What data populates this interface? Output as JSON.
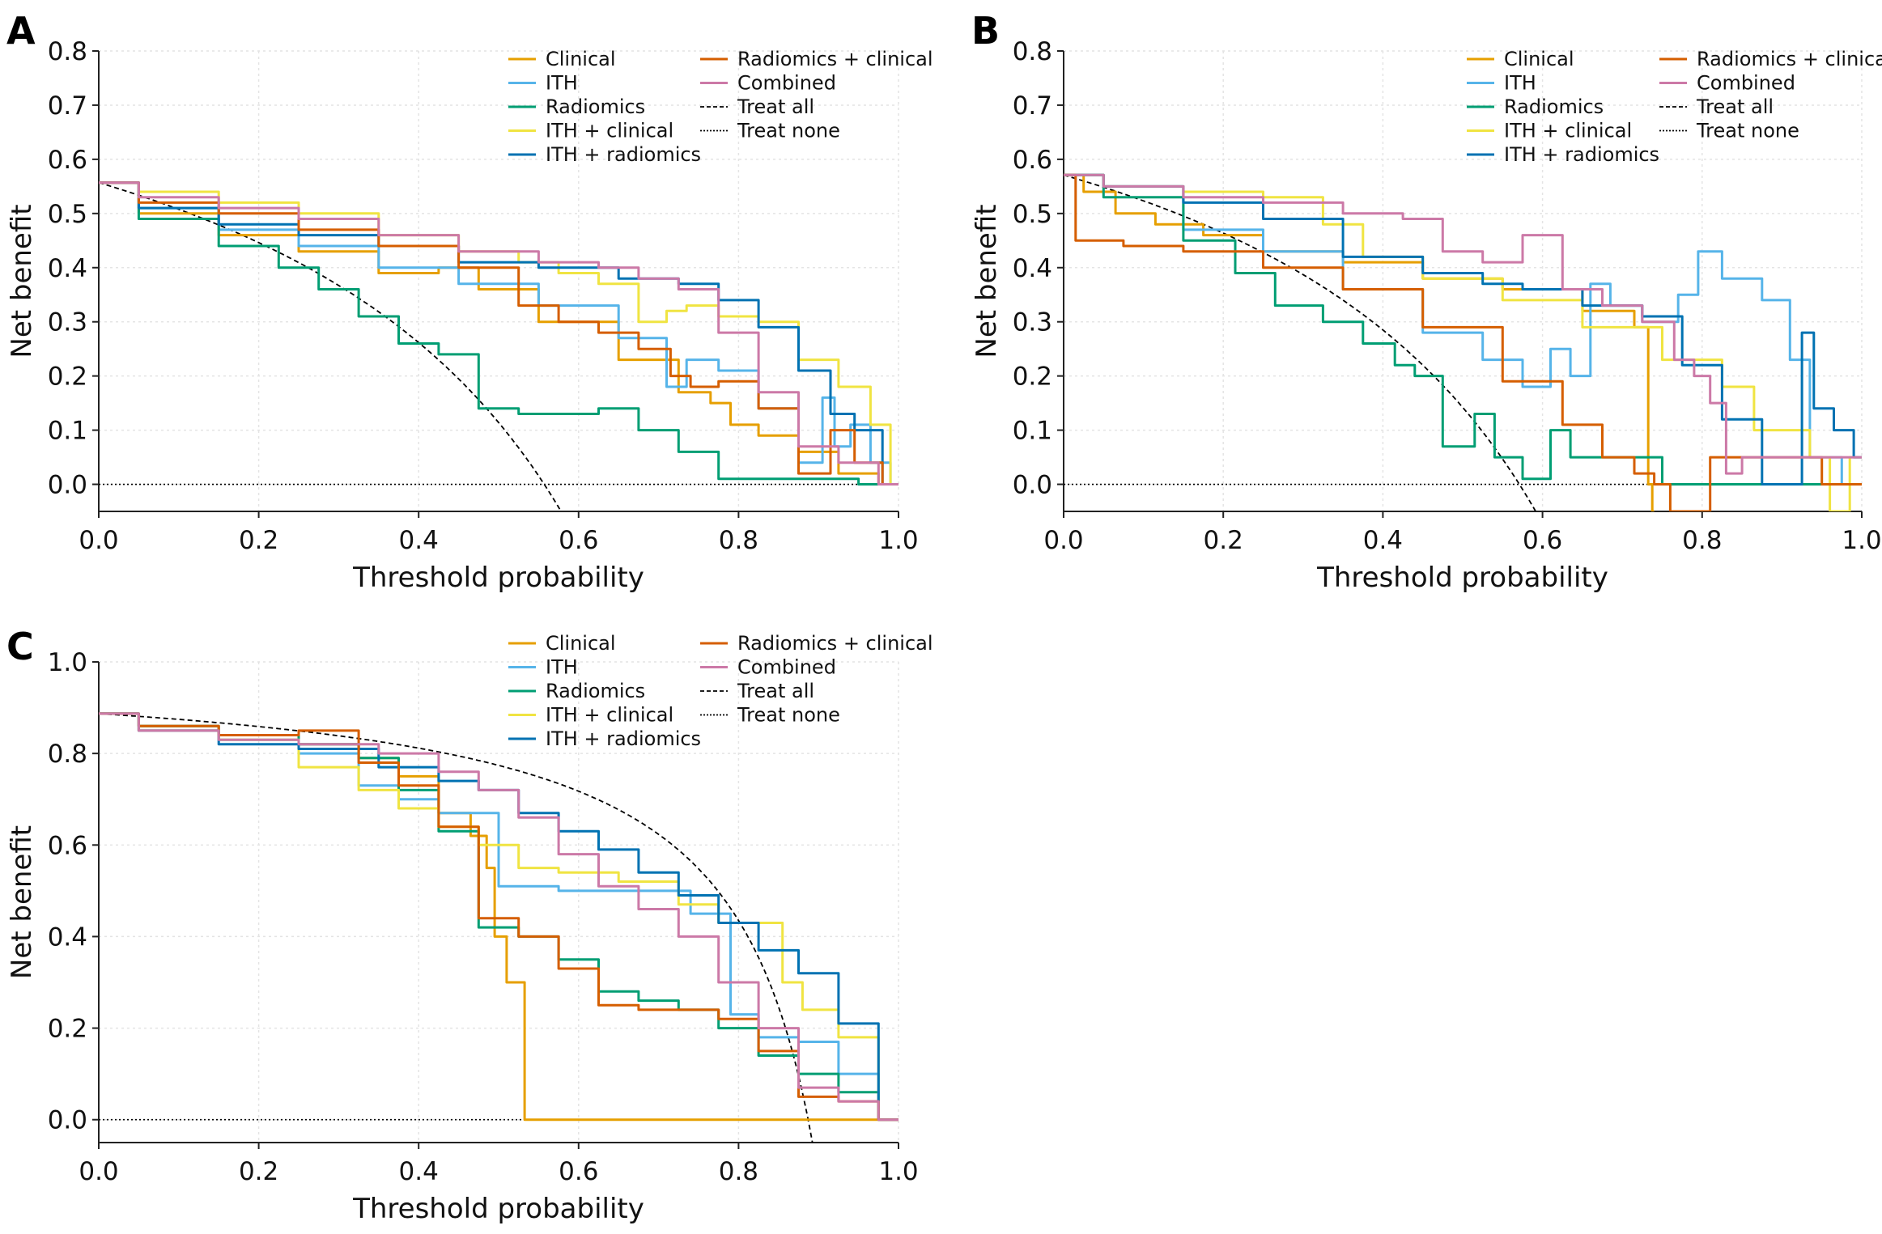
{
  "figure": {
    "colors": {
      "Clinical": "#E69F00",
      "ITH": "#56B4E9",
      "Radiomics": "#009E73",
      "ITH + clinical": "#F0E442",
      "ITH + radiomics": "#0072B2",
      "Radiomics + clinical": "#D55E00",
      "Combined": "#CC79A7",
      "Treat all": "#000000",
      "Treat none": "#000000"
    }
  },
  "chart_data": [
    {
      "panel": "A",
      "type": "line",
      "xlabel": "Threshold probability",
      "ylabel": "Net benefit",
      "xlim": [
        0,
        1
      ],
      "ylim": [
        -0.05,
        0.8
      ],
      "xticks": [
        "0.0",
        "0.2",
        "0.4",
        "0.6",
        "0.8",
        "1.0"
      ],
      "yticks": [
        "0.0",
        "0.1",
        "0.2",
        "0.3",
        "0.4",
        "0.5",
        "0.6",
        "0.7",
        "0.8"
      ],
      "ytick_values": [
        0,
        0.1,
        0.2,
        0.3,
        0.4,
        0.5,
        0.6,
        0.7,
        0.8
      ],
      "legend": [
        "Clinical",
        "ITH",
        "Radiomics",
        "ITH + clinical",
        "ITH + radiomics",
        "Radiomics + clinical",
        "Combined",
        "Treat all",
        "Treat none"
      ],
      "legend_position": "top-right",
      "prevalence": 0.557,
      "series": [
        {
          "name": "Clinical",
          "x": [
            0,
            0.1,
            0.2,
            0.3,
            0.4,
            0.45,
            0.5,
            0.6,
            0.7,
            0.75,
            0.78,
            0.8,
            0.85,
            0.9,
            0.95,
            1.0
          ],
          "y": [
            0.557,
            0.5,
            0.46,
            0.43,
            0.39,
            0.4,
            0.36,
            0.3,
            0.23,
            0.17,
            0.15,
            0.11,
            0.09,
            0.06,
            0.02,
            0.0
          ]
        },
        {
          "name": "ITH",
          "x": [
            0,
            0.1,
            0.2,
            0.3,
            0.4,
            0.5,
            0.6,
            0.7,
            0.72,
            0.75,
            0.8,
            0.85,
            0.9,
            0.91,
            0.93,
            0.95,
            0.98,
            1.0
          ],
          "y": [
            0.557,
            0.51,
            0.47,
            0.44,
            0.4,
            0.37,
            0.33,
            0.27,
            0.18,
            0.23,
            0.21,
            0.14,
            0.04,
            0.16,
            0.07,
            0.11,
            0.04,
            0.0
          ]
        },
        {
          "name": "Radiomics",
          "x": [
            0,
            0.1,
            0.2,
            0.25,
            0.3,
            0.35,
            0.4,
            0.45,
            0.5,
            0.55,
            0.6,
            0.65,
            0.7,
            0.75,
            0.8,
            0.9,
            1.0
          ],
          "y": [
            0.557,
            0.49,
            0.44,
            0.4,
            0.36,
            0.31,
            0.26,
            0.24,
            0.14,
            0.13,
            0.13,
            0.14,
            0.1,
            0.06,
            0.01,
            0.01,
            0.0
          ]
        },
        {
          "name": "ITH + clinical",
          "x": [
            0,
            0.1,
            0.2,
            0.3,
            0.4,
            0.5,
            0.55,
            0.6,
            0.65,
            0.7,
            0.72,
            0.75,
            0.8,
            0.85,
            0.9,
            0.95,
            0.98,
            1.0
          ],
          "y": [
            0.557,
            0.54,
            0.52,
            0.5,
            0.46,
            0.43,
            0.41,
            0.39,
            0.37,
            0.3,
            0.32,
            0.33,
            0.31,
            0.3,
            0.23,
            0.18,
            0.11,
            0.0
          ]
        },
        {
          "name": "ITH + radiomics",
          "x": [
            0,
            0.1,
            0.2,
            0.3,
            0.4,
            0.5,
            0.6,
            0.7,
            0.75,
            0.8,
            0.85,
            0.9,
            0.93,
            0.96,
            1.0
          ],
          "y": [
            0.557,
            0.51,
            0.48,
            0.46,
            0.44,
            0.41,
            0.4,
            0.38,
            0.37,
            0.34,
            0.29,
            0.21,
            0.13,
            0.1,
            0.0
          ]
        },
        {
          "name": "Radiomics + clinical",
          "x": [
            0,
            0.1,
            0.2,
            0.3,
            0.4,
            0.5,
            0.55,
            0.6,
            0.65,
            0.7,
            0.73,
            0.75,
            0.8,
            0.85,
            0.9,
            0.93,
            0.96,
            1.0
          ],
          "y": [
            0.557,
            0.52,
            0.5,
            0.47,
            0.44,
            0.4,
            0.33,
            0.3,
            0.28,
            0.25,
            0.2,
            0.18,
            0.19,
            0.14,
            0.02,
            0.1,
            0.04,
            0.0
          ]
        },
        {
          "name": "Combined",
          "x": [
            0,
            0.1,
            0.2,
            0.3,
            0.4,
            0.5,
            0.6,
            0.65,
            0.7,
            0.75,
            0.8,
            0.85,
            0.9,
            0.95,
            1.0
          ],
          "y": [
            0.557,
            0.53,
            0.51,
            0.49,
            0.46,
            0.43,
            0.41,
            0.4,
            0.38,
            0.36,
            0.28,
            0.17,
            0.07,
            0.04,
            0.0
          ]
        }
      ]
    },
    {
      "panel": "B",
      "type": "line",
      "xlabel": "Threshold probability",
      "ylabel": "Net benefit",
      "xlim": [
        0,
        1
      ],
      "ylim": [
        -0.05,
        0.8
      ],
      "xticks": [
        "0.0",
        "0.2",
        "0.4",
        "0.6",
        "0.8",
        "1.0"
      ],
      "yticks": [
        "0.0",
        "0.1",
        "0.2",
        "0.3",
        "0.4",
        "0.5",
        "0.6",
        "0.7",
        "0.8"
      ],
      "ytick_values": [
        0,
        0.1,
        0.2,
        0.3,
        0.4,
        0.5,
        0.6,
        0.7,
        0.8
      ],
      "legend": [
        "Clinical",
        "ITH",
        "Radiomics",
        "ITH + clinical",
        "ITH + radiomics",
        "Radiomics + clinical",
        "Combined",
        "Treat all",
        "Treat none"
      ],
      "legend_position": "top-right",
      "prevalence": 0.571,
      "series": [
        {
          "name": "Clinical",
          "x": [
            0,
            0.05,
            0.08,
            0.15,
            0.2,
            0.3,
            0.4,
            0.5,
            0.6,
            0.7,
            0.73,
            0.735,
            0.74
          ],
          "y": [
            0.571,
            0.54,
            0.5,
            0.48,
            0.46,
            0.43,
            0.41,
            0.38,
            0.36,
            0.32,
            0.29,
            0.0,
            -0.05
          ]
        },
        {
          "name": "ITH",
          "x": [
            0,
            0.1,
            0.2,
            0.3,
            0.4,
            0.5,
            0.55,
            0.6,
            0.62,
            0.65,
            0.67,
            0.7,
            0.75,
            0.79,
            0.8,
            0.85,
            0.9,
            0.92,
            0.95,
            1.0
          ],
          "y": [
            0.571,
            0.55,
            0.47,
            0.43,
            0.36,
            0.28,
            0.23,
            0.18,
            0.25,
            0.2,
            0.37,
            0.33,
            0.3,
            0.35,
            0.43,
            0.38,
            0.34,
            0.23,
            0.05,
            0.0
          ]
        },
        {
          "name": "Radiomics",
          "x": [
            0,
            0.1,
            0.2,
            0.23,
            0.3,
            0.35,
            0.4,
            0.43,
            0.45,
            0.5,
            0.53,
            0.55,
            0.6,
            0.62,
            0.65,
            0.7,
            0.8,
            1.0
          ],
          "y": [
            0.571,
            0.53,
            0.45,
            0.39,
            0.33,
            0.3,
            0.26,
            0.22,
            0.2,
            0.07,
            0.13,
            0.05,
            0.01,
            0.1,
            0.05,
            0.05,
            0.0,
            0.0
          ]
        },
        {
          "name": "ITH + clinical",
          "x": [
            0,
            0.1,
            0.2,
            0.3,
            0.35,
            0.4,
            0.5,
            0.6,
            0.7,
            0.8,
            0.85,
            0.88,
            0.92,
            0.95,
            0.97,
            1.0
          ],
          "y": [
            0.571,
            0.55,
            0.54,
            0.53,
            0.48,
            0.42,
            0.38,
            0.34,
            0.29,
            0.23,
            0.18,
            0.1,
            0.1,
            0.05,
            -0.05,
            0.05
          ]
        },
        {
          "name": "ITH + radiomics",
          "x": [
            0,
            0.1,
            0.2,
            0.3,
            0.4,
            0.5,
            0.55,
            0.6,
            0.7,
            0.75,
            0.8,
            0.85,
            0.9,
            0.92,
            0.93,
            0.95,
            0.98,
            1.0
          ],
          "y": [
            0.571,
            0.55,
            0.52,
            0.49,
            0.42,
            0.39,
            0.37,
            0.36,
            0.33,
            0.31,
            0.22,
            0.12,
            0.0,
            0.0,
            0.28,
            0.14,
            0.1,
            0.05
          ]
        },
        {
          "name": "Radiomics + clinical",
          "x": [
            0,
            0.03,
            0.05,
            0.1,
            0.2,
            0.3,
            0.4,
            0.5,
            0.6,
            0.65,
            0.7,
            0.73,
            0.75,
            0.77,
            0.85,
            0.9,
            1.0
          ],
          "y": [
            0.571,
            0.45,
            0.45,
            0.44,
            0.43,
            0.4,
            0.36,
            0.29,
            0.19,
            0.11,
            0.05,
            0.02,
            0.0,
            -0.05,
            0.05,
            0.05,
            0.0
          ]
        },
        {
          "name": "Combined",
          "x": [
            0,
            0.1,
            0.2,
            0.3,
            0.4,
            0.45,
            0.5,
            0.55,
            0.6,
            0.65,
            0.7,
            0.75,
            0.78,
            0.8,
            0.82,
            0.84,
            0.86,
            1.0
          ],
          "y": [
            0.571,
            0.55,
            0.53,
            0.52,
            0.5,
            0.49,
            0.43,
            0.41,
            0.46,
            0.36,
            0.33,
            0.3,
            0.23,
            0.2,
            0.15,
            0.02,
            0.05,
            0.05
          ]
        }
      ]
    },
    {
      "panel": "C",
      "type": "line",
      "xlabel": "Threshold probability",
      "ylabel": "Net benefit",
      "xlim": [
        0,
        1
      ],
      "ylim": [
        -0.05,
        1.0
      ],
      "xticks": [
        "0.0",
        "0.2",
        "0.4",
        "0.6",
        "0.8",
        "1.0"
      ],
      "yticks": [
        "0.0",
        "0.2",
        "0.4",
        "0.6",
        "0.8",
        "1.0"
      ],
      "ytick_values": [
        0,
        0.2,
        0.4,
        0.6,
        0.8,
        1.0
      ],
      "legend": [
        "Clinical",
        "ITH",
        "Radiomics",
        "ITH + clinical",
        "ITH + radiomics",
        "Radiomics + clinical",
        "Combined",
        "Treat all",
        "Treat none"
      ],
      "legend_position": "top-center",
      "prevalence": 0.887,
      "series": [
        {
          "name": "Clinical",
          "x": [
            0,
            0.1,
            0.2,
            0.3,
            0.35,
            0.4,
            0.45,
            0.48,
            0.49,
            0.5,
            0.52,
            0.53,
            0.535,
            1.0
          ],
          "y": [
            0.887,
            0.86,
            0.84,
            0.82,
            0.79,
            0.75,
            0.67,
            0.62,
            0.55,
            0.4,
            0.3,
            0.3,
            0.0,
            0.0
          ]
        },
        {
          "name": "ITH",
          "x": [
            0,
            0.1,
            0.2,
            0.3,
            0.35,
            0.4,
            0.45,
            0.55,
            0.6,
            0.7,
            0.78,
            0.8,
            0.85,
            0.9,
            0.95,
            1.0
          ],
          "y": [
            0.887,
            0.85,
            0.83,
            0.8,
            0.73,
            0.7,
            0.67,
            0.51,
            0.5,
            0.5,
            0.45,
            0.23,
            0.18,
            0.17,
            0.1,
            0.0
          ]
        },
        {
          "name": "Radiomics",
          "x": [
            0,
            0.1,
            0.2,
            0.3,
            0.35,
            0.4,
            0.45,
            0.5,
            0.55,
            0.6,
            0.65,
            0.7,
            0.75,
            0.8,
            0.85,
            0.9,
            0.95,
            1.0
          ],
          "y": [
            0.887,
            0.86,
            0.84,
            0.82,
            0.79,
            0.72,
            0.63,
            0.42,
            0.4,
            0.35,
            0.28,
            0.26,
            0.24,
            0.2,
            0.14,
            0.1,
            0.06,
            0.0
          ]
        },
        {
          "name": "ITH + clinical",
          "x": [
            0,
            0.1,
            0.2,
            0.3,
            0.35,
            0.4,
            0.45,
            0.5,
            0.55,
            0.6,
            0.7,
            0.75,
            0.8,
            0.85,
            0.86,
            0.9,
            0.95,
            1.0
          ],
          "y": [
            0.887,
            0.85,
            0.83,
            0.77,
            0.72,
            0.68,
            0.64,
            0.6,
            0.55,
            0.54,
            0.52,
            0.47,
            0.43,
            0.43,
            0.3,
            0.24,
            0.18,
            0.0
          ]
        },
        {
          "name": "ITH + radiomics",
          "x": [
            0,
            0.1,
            0.2,
            0.3,
            0.4,
            0.45,
            0.5,
            0.55,
            0.6,
            0.65,
            0.7,
            0.75,
            0.8,
            0.85,
            0.9,
            0.95,
            1.0
          ],
          "y": [
            0.887,
            0.85,
            0.82,
            0.81,
            0.77,
            0.74,
            0.72,
            0.67,
            0.63,
            0.59,
            0.54,
            0.49,
            0.43,
            0.37,
            0.32,
            0.21,
            0.0
          ]
        },
        {
          "name": "Radiomics + clinical",
          "x": [
            0,
            0.1,
            0.2,
            0.3,
            0.35,
            0.4,
            0.45,
            0.5,
            0.55,
            0.6,
            0.65,
            0.7,
            0.75,
            0.8,
            0.85,
            0.9,
            0.95,
            1.0
          ],
          "y": [
            0.887,
            0.86,
            0.84,
            0.85,
            0.78,
            0.73,
            0.64,
            0.44,
            0.4,
            0.33,
            0.25,
            0.24,
            0.24,
            0.22,
            0.15,
            0.05,
            0.04,
            0.0
          ]
        },
        {
          "name": "Combined",
          "x": [
            0,
            0.1,
            0.2,
            0.3,
            0.4,
            0.45,
            0.5,
            0.55,
            0.6,
            0.65,
            0.7,
            0.75,
            0.8,
            0.85,
            0.9,
            0.95,
            1.0
          ],
          "y": [
            0.887,
            0.85,
            0.83,
            0.82,
            0.8,
            0.76,
            0.72,
            0.66,
            0.58,
            0.51,
            0.46,
            0.4,
            0.3,
            0.2,
            0.07,
            0.04,
            0.0
          ]
        }
      ]
    }
  ]
}
